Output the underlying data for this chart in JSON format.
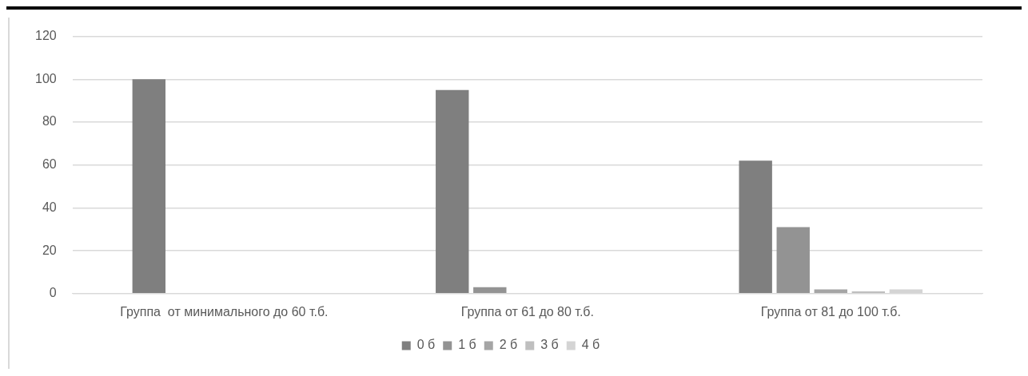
{
  "chart_data": {
    "type": "bar",
    "categories": [
      "Группа  от минимального до 60 т.б.",
      "Группа от 61 до 80 т.б.",
      "Группа от 81 до 100 т.б."
    ],
    "series": [
      {
        "name": "0 б",
        "color": "#7f7f7f",
        "values": [
          100,
          95,
          62
        ]
      },
      {
        "name": "1 б",
        "color": "#939393",
        "values": [
          0,
          3,
          31
        ]
      },
      {
        "name": "2 б",
        "color": "#a5a5a5",
        "values": [
          0,
          0,
          2
        ]
      },
      {
        "name": "3 б",
        "color": "#bfbfbf",
        "values": [
          0,
          0,
          1
        ]
      },
      {
        "name": "4 б",
        "color": "#d4d4d4",
        "values": [
          0,
          0,
          2
        ]
      }
    ],
    "ylim": [
      0,
      120
    ],
    "yticks": [
      0,
      20,
      40,
      60,
      80,
      100,
      120
    ],
    "grid": "y",
    "legend": "bottom"
  }
}
